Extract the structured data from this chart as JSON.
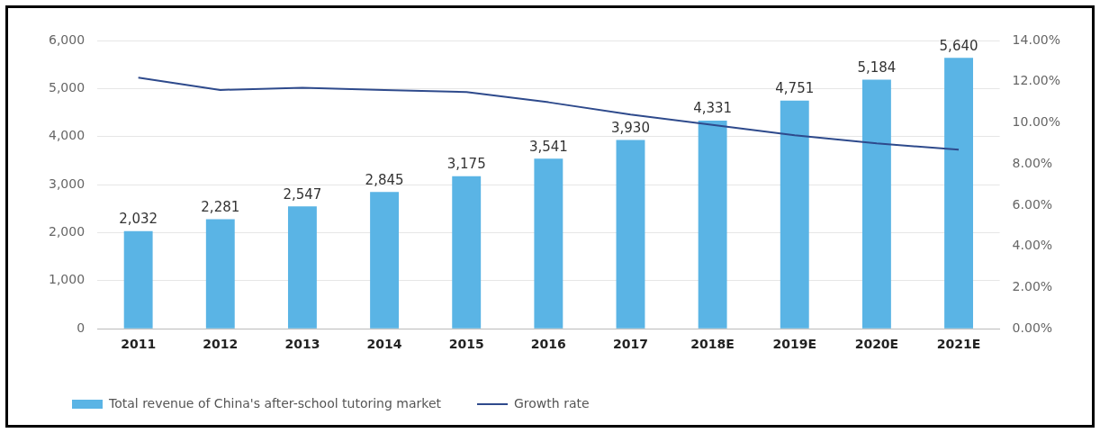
{
  "chart_data": {
    "type": "bar",
    "categories": [
      "2011",
      "2012",
      "2013",
      "2014",
      "2015",
      "2016",
      "2017",
      "2018E",
      "2019E",
      "2020E",
      "2021E"
    ],
    "series": [
      {
        "name": "Total revenue of China's after-school tutoring market",
        "color": "#5ab4e5",
        "values": [
          2032,
          2281,
          2547,
          2845,
          3175,
          3541,
          3930,
          4331,
          4751,
          5184,
          5640
        ],
        "value_labels": [
          "2,032",
          "2,281",
          "2,547",
          "2,845",
          "3,175",
          "3,541",
          "3,930",
          "4,331",
          "4,751",
          "5,184",
          "5,640"
        ]
      },
      {
        "name": "Growth rate",
        "type": "line",
        "axis": "y2",
        "color": "#2e4a8c",
        "values": [
          12.2,
          11.6,
          11.7,
          11.6,
          11.5,
          11.0,
          10.4,
          9.9,
          9.4,
          9.0,
          8.7
        ]
      }
    ],
    "ylim": [
      0,
      6000
    ],
    "yticks": [
      0,
      {
        "value": 1000,
        "label": "1,000"
      },
      {
        "value": 2000,
        "label": "2,000"
      },
      {
        "value": 3000,
        "label": "3,000"
      },
      {
        "value": 4000,
        "label": "4,000"
      },
      {
        "value": 5000,
        "label": "5,000"
      },
      {
        "value": 6000,
        "label": "6,000"
      }
    ],
    "y2lim": [
      0,
      14
    ],
    "y2ticks": [
      {
        "value": 0,
        "label": "0.00%"
      },
      {
        "value": 2,
        "label": "2.00%"
      },
      {
        "value": 4,
        "label": "4.00%"
      },
      {
        "value": 6,
        "label": "6.00%"
      },
      {
        "value": 8,
        "label": "8.00%"
      },
      {
        "value": 10,
        "label": "10.00%"
      },
      {
        "value": 12,
        "label": "12.00%"
      },
      {
        "value": 14,
        "label": "14.00%"
      }
    ],
    "grid": "y",
    "legend": "bottom",
    "marker": "none"
  }
}
